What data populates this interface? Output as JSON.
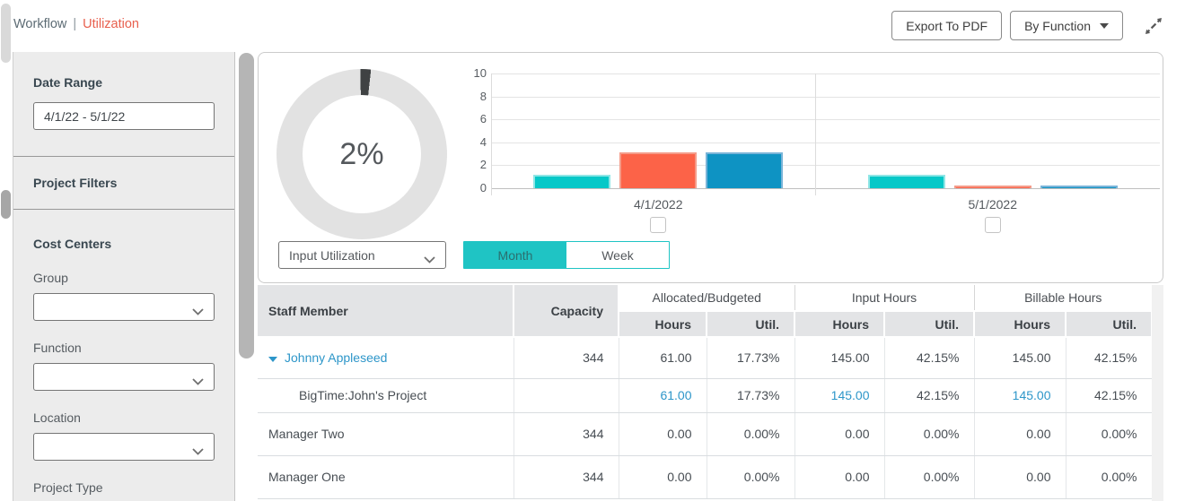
{
  "page": {
    "breadcrumb": {
      "root": "Workflow",
      "separator": "|",
      "current": "Utilization"
    }
  },
  "toolbar": {
    "export_pdf_label": "Export To PDF",
    "group_by_label": "By Function"
  },
  "sidebar": {
    "date_range_heading": "Date Range",
    "date_range_value": "4/1/22 - 5/1/22",
    "project_filters_heading": "Project Filters",
    "cost_centers_heading": "Cost Centers",
    "filters": [
      {
        "label": "Group",
        "value": ""
      },
      {
        "label": "Function",
        "value": ""
      },
      {
        "label": "Location",
        "value": ""
      }
    ],
    "next_section_label": "Project Type"
  },
  "utilization_panel": {
    "donut": {
      "percent": 2,
      "label": "2%",
      "slice_color": "#3f4243",
      "ring_color": "#e2e2e2"
    },
    "metric_select_value": "Input Utilization",
    "period_toggle": {
      "options": [
        "Month",
        "Week"
      ],
      "active": "Month",
      "active_bg": "#1fc4c4"
    }
  },
  "chart_data": {
    "type": "bar",
    "categories": [
      "4/1/2022",
      "5/1/2022"
    ],
    "series": [
      {
        "name": "teal-series",
        "fill": "#06c8c8",
        "border": "#8fe6e6",
        "values": [
          1,
          1
        ]
      },
      {
        "name": "orange-series",
        "fill": "#fc6348",
        "border": "#f59b89",
        "values": [
          3,
          0.1
        ]
      },
      {
        "name": "blue-series",
        "fill": "#0e93c3",
        "border": "#79b4d8",
        "values": [
          3,
          0.1
        ]
      }
    ],
    "ylim": [
      0,
      10
    ],
    "yticks": [
      0,
      2,
      4,
      6,
      8,
      10
    ],
    "grid": true,
    "legend": "none",
    "category_checkboxes": [
      false,
      false
    ]
  },
  "table": {
    "staff_col_header": "Staff Member",
    "capacity_col_header": "Capacity",
    "group_headers": [
      "Allocated/Budgeted",
      "Input Hours",
      "Billable Hours"
    ],
    "sub_headers": [
      "Hours",
      "Util."
    ],
    "rows": [
      {
        "name": "Johnny Appleseed",
        "indent": false,
        "expandable": true,
        "name_link": true,
        "capacity": "344",
        "values": [
          {
            "text": "61.00",
            "link": false
          },
          {
            "text": "17.73%",
            "link": false
          },
          {
            "text": "145.00",
            "link": false
          },
          {
            "text": "42.15%",
            "link": false
          },
          {
            "text": "145.00",
            "link": false
          },
          {
            "text": "42.15%",
            "link": false
          }
        ]
      },
      {
        "name": "BigTime:John's Project",
        "indent": true,
        "expandable": false,
        "name_link": false,
        "capacity": "",
        "values": [
          {
            "text": "61.00",
            "link": true
          },
          {
            "text": "17.73%",
            "link": false
          },
          {
            "text": "145.00",
            "link": true
          },
          {
            "text": "42.15%",
            "link": false
          },
          {
            "text": "145.00",
            "link": true
          },
          {
            "text": "42.15%",
            "link": false
          }
        ]
      },
      {
        "name": "Manager Two",
        "indent": false,
        "expandable": false,
        "name_link": false,
        "capacity": "344",
        "values": [
          {
            "text": "0.00",
            "link": false
          },
          {
            "text": "0.00%",
            "link": false
          },
          {
            "text": "0.00",
            "link": false
          },
          {
            "text": "0.00%",
            "link": false
          },
          {
            "text": "0.00",
            "link": false
          },
          {
            "text": "0.00%",
            "link": false
          }
        ]
      },
      {
        "name": "Manager One",
        "indent": false,
        "expandable": false,
        "name_link": false,
        "capacity": "344",
        "values": [
          {
            "text": "0.00",
            "link": false
          },
          {
            "text": "0.00%",
            "link": false
          },
          {
            "text": "0.00",
            "link": false
          },
          {
            "text": "0.00%",
            "link": false
          },
          {
            "text": "0.00",
            "link": false
          },
          {
            "text": "0.00%",
            "link": false
          }
        ]
      }
    ]
  }
}
